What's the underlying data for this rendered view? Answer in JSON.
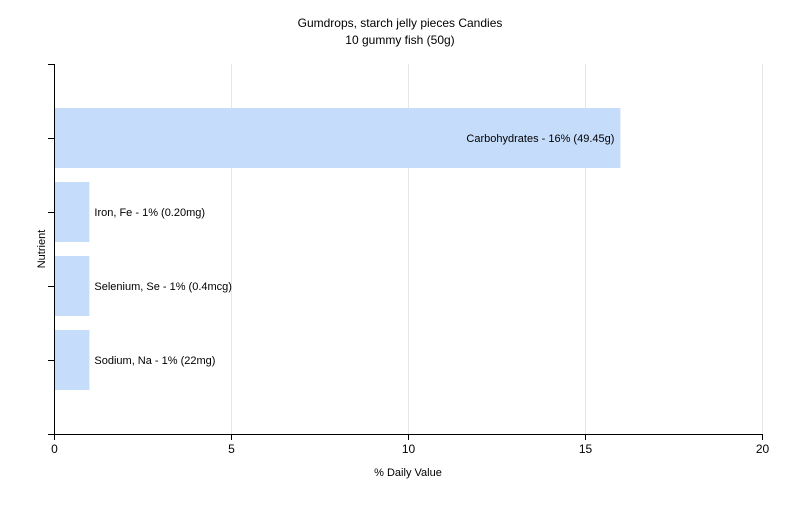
{
  "chart_data": {
    "type": "bar",
    "orientation": "horizontal",
    "title": "Gumdrops, starch jelly pieces Candies",
    "subtitle": "10 gummy fish (50g)",
    "xlabel": "% Daily Value",
    "ylabel": "Nutrient",
    "xlim": [
      0,
      20
    ],
    "xticks": [
      0,
      5,
      10,
      15,
      20
    ],
    "grid": true,
    "legend": "none",
    "categories": [
      "Carbohydrates",
      "Iron, Fe",
      "Selenium, Se",
      "Sodium, Na"
    ],
    "values": [
      16,
      1,
      1,
      1
    ],
    "labels": [
      "Carbohydrates - 16% (49.45g)",
      "Iron, Fe - 1% (0.20mg)",
      "Selenium, Se - 1% (0.4mcg)",
      "Sodium, Na - 1% (22mg)"
    ],
    "colors": {
      "bar": "#c5dcfb",
      "grid": "#e6e6e6",
      "axis": "#000000"
    }
  }
}
